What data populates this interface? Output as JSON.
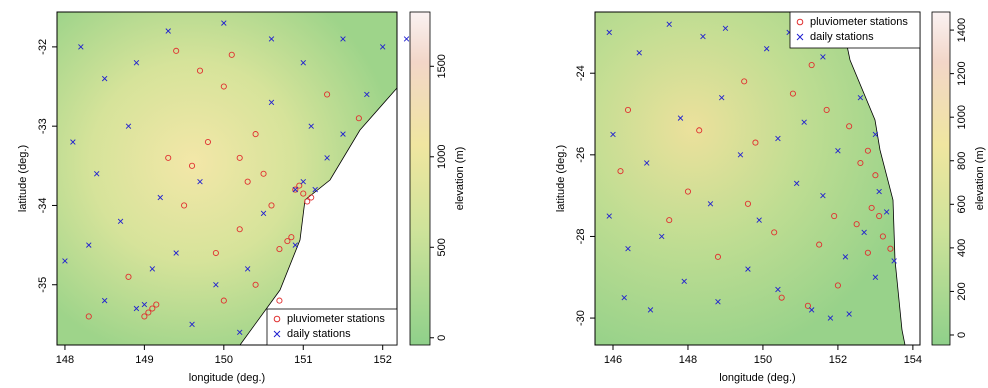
{
  "chart_data": [
    {
      "type": "scatter",
      "xlabel": "longitude (deg.)",
      "ylabel": "latitude (deg.)",
      "xlim": [
        147.9,
        152.18
      ],
      "ylim": [
        -35.76,
        -31.56
      ],
      "xticks": [
        148,
        149,
        150,
        151,
        152
      ],
      "yticks": [
        -35,
        -34,
        -33,
        -32
      ],
      "legend": "bottom-right",
      "colorbar": {
        "label": "elevation (m)",
        "lim": [
          -40,
          1800
        ],
        "ticks": [
          0,
          500,
          1000,
          1500
        ]
      },
      "series": [
        {
          "name": "pluviometer stations",
          "color": "#e03030",
          "marker": "o",
          "x": [
            149.1,
            149.05,
            149.15,
            149.0,
            150.9,
            151.0,
            151.1,
            150.95,
            151.05,
            150.8,
            150.7,
            150.85,
            150.3,
            150.5,
            150.2,
            149.8,
            149.6,
            150.0,
            149.7,
            150.4,
            150.6,
            150.2,
            149.9,
            149.5,
            149.3,
            148.8,
            150.0,
            150.4,
            150.1,
            151.3,
            151.7,
            149.4,
            148.3,
            150.7
          ],
          "y": [
            -35.3,
            -35.35,
            -35.25,
            -35.4,
            -33.8,
            -33.85,
            -33.9,
            -33.75,
            -33.95,
            -34.45,
            -34.55,
            -34.4,
            -33.7,
            -33.6,
            -33.4,
            -33.2,
            -33.5,
            -32.5,
            -32.3,
            -33.1,
            -34.0,
            -34.3,
            -34.6,
            -34.0,
            -33.4,
            -34.9,
            -35.2,
            -35.0,
            -32.1,
            -32.6,
            -32.9,
            -32.05,
            -35.4,
            -35.2
          ]
        },
        {
          "name": "daily stations",
          "color": "#2020d0",
          "marker": "x",
          "x": [
            148.2,
            148.5,
            148.9,
            149.3,
            150.0,
            150.6,
            151.0,
            151.5,
            152.0,
            152.3,
            148.1,
            148.4,
            148.8,
            149.2,
            148.3,
            148.0,
            148.7,
            149.1,
            149.4,
            148.5,
            148.9,
            149.6,
            150.2,
            149.9,
            150.9,
            151.15,
            151.0,
            151.3,
            151.5,
            151.1,
            150.6,
            150.9,
            150.5,
            149.0,
            151.8,
            149.7,
            150.3
          ],
          "y": [
            -32.0,
            -32.4,
            -32.2,
            -31.8,
            -31.7,
            -31.9,
            -32.2,
            -31.9,
            -32.0,
            -31.9,
            -33.2,
            -33.6,
            -33.0,
            -33.9,
            -34.5,
            -34.7,
            -34.2,
            -34.8,
            -34.6,
            -35.2,
            -35.3,
            -35.5,
            -35.6,
            -35.0,
            -33.8,
            -33.8,
            -33.7,
            -33.4,
            -33.1,
            -33.0,
            -32.7,
            -34.5,
            -34.1,
            -35.25,
            -32.6,
            -33.7,
            -34.8
          ]
        }
      ]
    },
    {
      "type": "scatter",
      "xlabel": "longitude (deg.)",
      "ylabel": "latitude (deg.)",
      "xlim": [
        145.52,
        154.19
      ],
      "ylim": [
        -30.66,
        -22.5
      ],
      "xticks": [
        146,
        148,
        150,
        152,
        154
      ],
      "yticks": [
        -30,
        -28,
        -26,
        -24
      ],
      "legend": "top-right",
      "colorbar": {
        "label": "elevation (m)",
        "lim": [
          -46,
          1483
        ],
        "ticks": [
          0,
          200,
          400,
          600,
          800,
          1000,
          1200,
          1400
        ]
      },
      "series": [
        {
          "name": "pluviometer stations",
          "color": "#e03030",
          "marker": "o",
          "x": [
            146.4,
            146.2,
            148.0,
            149.5,
            150.8,
            151.3,
            151.7,
            152.3,
            152.8,
            153.0,
            153.1,
            152.9,
            153.2,
            152.5,
            151.9,
            151.5,
            150.3,
            149.6,
            148.8,
            147.5,
            152.0,
            152.8,
            153.4,
            149.8,
            148.3,
            151.2,
            150.5,
            152.6
          ],
          "y": [
            -24.9,
            -26.4,
            -26.9,
            -24.2,
            -24.5,
            -23.8,
            -24.9,
            -25.3,
            -25.9,
            -26.5,
            -27.5,
            -27.3,
            -28.0,
            -27.7,
            -27.5,
            -28.2,
            -27.9,
            -27.2,
            -28.5,
            -27.6,
            -29.2,
            -28.4,
            -28.3,
            -25.7,
            -25.4,
            -29.7,
            -29.5,
            -26.2
          ]
        },
        {
          "name": "daily stations",
          "color": "#2020d0",
          "marker": "x",
          "x": [
            145.9,
            146.7,
            147.5,
            148.4,
            149.0,
            150.1,
            150.7,
            151.6,
            146.0,
            146.9,
            147.8,
            148.9,
            149.4,
            150.4,
            151.1,
            152.0,
            152.6,
            153.0,
            153.1,
            153.3,
            152.7,
            152.2,
            151.6,
            150.9,
            149.9,
            148.6,
            147.3,
            146.4,
            145.9,
            146.3,
            147.0,
            147.9,
            148.8,
            149.6,
            150.4,
            151.3,
            152.3,
            153.0,
            153.5,
            151.8
          ],
          "y": [
            -23.0,
            -23.5,
            -22.8,
            -23.1,
            -22.9,
            -23.4,
            -23.0,
            -23.6,
            -25.5,
            -26.2,
            -25.1,
            -24.6,
            -26.0,
            -25.6,
            -25.2,
            -25.9,
            -24.6,
            -25.5,
            -26.9,
            -27.4,
            -27.9,
            -28.5,
            -27.0,
            -26.7,
            -27.6,
            -27.2,
            -28.0,
            -28.3,
            -27.5,
            -29.5,
            -29.8,
            -29.1,
            -29.6,
            -28.8,
            -29.3,
            -29.8,
            -29.9,
            -29.0,
            -28.6,
            -30.0
          ]
        }
      ]
    }
  ]
}
